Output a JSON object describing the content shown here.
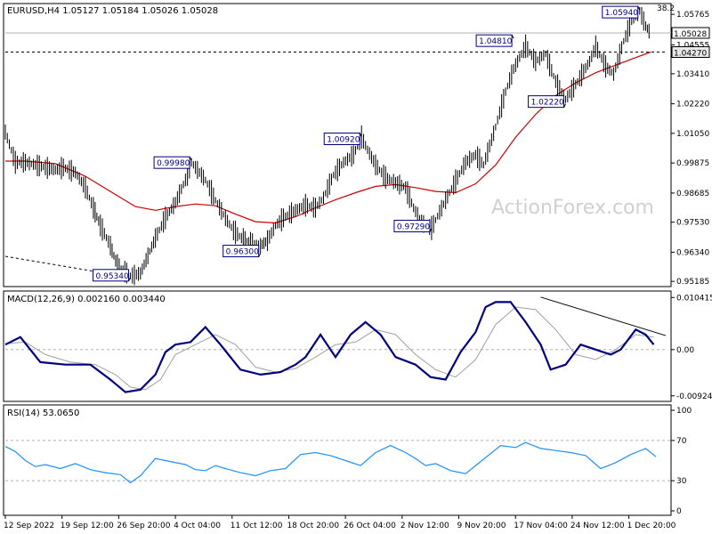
{
  "chart_data": [
    {
      "panel": "price",
      "type": "line",
      "header": "EURUSD,H4  1.05127 1.05184 1.05026 1.05028",
      "watermark": "ActionForex.com",
      "corner_value": "38.2",
      "ylim": [
        0.9505,
        1.0605
      ],
      "y_ticks": [
        "1.05765",
        "1.04555",
        "1.03410",
        "1.02220",
        "1.01050",
        "0.99875",
        "0.98685",
        "0.97530",
        "0.96340",
        "0.95185"
      ],
      "current_price": "1.05028",
      "ma_price": "1.04270",
      "price_line_level": 1.05028,
      "ma_dashed_level": 1.0427,
      "series": [
        {
          "name": "",
          "color": "#000000",
          "x_index": [
            0,
            10,
            20,
            30,
            40,
            50,
            58,
            70,
            80,
            88,
            95,
            105,
            112,
            125,
            135,
            150,
            160,
            170,
            180,
            186,
            200,
            210,
            220,
            228,
            236,
            245,
            255,
            262,
            270,
            278,
            290,
            300,
            310,
            318,
            328,
            338,
            348,
            356,
            362,
            370,
            380,
            390,
            400,
            408,
            416,
            426,
            440,
            452,
            460,
            470,
            478,
            490,
            500,
            508,
            520,
            530,
            540,
            550,
            560,
            572,
            584,
            590,
            600,
            608,
            618,
            626,
            634,
            640,
            645
          ],
          "values": [
            1.011,
            0.999,
            0.999,
            0.998,
            0.997,
            0.996,
            0.997,
            0.995,
            0.989,
            0.981,
            0.974,
            0.966,
            0.958,
            0.954,
            0.955,
            0.969,
            0.977,
            0.983,
            0.992,
            0.999,
            0.992,
            0.984,
            0.977,
            0.972,
            0.969,
            0.967,
            0.966,
            0.968,
            0.974,
            0.977,
            0.98,
            0.982,
            0.981,
            0.985,
            0.994,
            0.999,
            1.002,
            1.009,
            1.004,
            0.998,
            0.993,
            0.991,
            0.989,
            0.981,
            0.975,
            0.973,
            0.984,
            0.993,
            0.999,
            1.002,
            0.998,
            1.013,
            1.027,
            1.036,
            1.045,
            1.039,
            1.042,
            1.031,
            1.024,
            1.031,
            1.039,
            1.045,
            1.037,
            1.034,
            1.047,
            1.055,
            1.059,
            1.053,
            1.05
          ]
        },
        {
          "name": "",
          "color": "#cc0000",
          "x_index": [
            0,
            20,
            50,
            80,
            105,
            130,
            150,
            170,
            190,
            210,
            230,
            250,
            270,
            290,
            310,
            330,
            350,
            370,
            390,
            410,
            430,
            450,
            470,
            490,
            510,
            530,
            550,
            570,
            590,
            610,
            630,
            645
          ],
          "values": [
            0.9995,
            0.9995,
            0.9985,
            0.9935,
            0.9875,
            0.9815,
            0.98,
            0.9815,
            0.9825,
            0.9818,
            0.9785,
            0.9755,
            0.975,
            0.9775,
            0.981,
            0.9842,
            0.987,
            0.9895,
            0.9902,
            0.989,
            0.9875,
            0.987,
            0.9905,
            0.998,
            1.009,
            1.018,
            1.0255,
            1.0305,
            1.0345,
            1.0375,
            1.0405,
            1.0427
          ]
        }
      ],
      "labeled_points": [
        {
          "label": "0.95340",
          "x_index": 125,
          "y": 0.9534
        },
        {
          "label": "0.99980",
          "x_index": 186,
          "y": 0.9998
        },
        {
          "label": "0.96300",
          "x_index": 255,
          "y": 0.963
        },
        {
          "label": "1.00920",
          "x_index": 356,
          "y": 1.0092
        },
        {
          "label": "0.97290",
          "x_index": 426,
          "y": 0.9729
        },
        {
          "label": "1.04810",
          "x_index": 508,
          "y": 1.0481
        },
        {
          "label": "1.02220",
          "x_index": 560,
          "y": 1.0222
        },
        {
          "label": "1.05940",
          "x_index": 634,
          "y": 1.0594
        }
      ],
      "trendlines": [
        {
          "style": "dashed",
          "x_index": [
            0,
            125
          ],
          "values": [
            0.9618,
            0.9534
          ]
        },
        {
          "style": "dashed",
          "x_index": [
            0,
            660
          ],
          "values": [
            1.0427,
            1.0427
          ]
        }
      ]
    },
    {
      "panel": "macd",
      "type": "line",
      "header": "MACD(12,26,9) 0.002160 0.003440",
      "ylim": [
        -0.01,
        0.011
      ],
      "y_ticks": [
        "0.010415",
        "0.00",
        "-0.009244"
      ],
      "series": [
        {
          "name": "",
          "color": "#000080",
          "x_index": [
            0,
            15,
            35,
            60,
            85,
            105,
            120,
            135,
            150,
            160,
            170,
            185,
            200,
            215,
            235,
            255,
            275,
            290,
            300,
            315,
            330,
            345,
            360,
            375,
            390,
            410,
            425,
            440,
            455,
            470,
            480,
            490,
            505,
            520,
            535,
            545,
            560,
            575,
            590,
            605,
            615,
            630,
            640,
            648
          ],
          "values": [
            0.001,
            0.0025,
            -0.0025,
            -0.003,
            -0.003,
            -0.006,
            -0.0085,
            -0.008,
            -0.005,
            -0.0005,
            0.001,
            0.0015,
            0.0045,
            0.001,
            -0.004,
            -0.005,
            -0.0045,
            -0.003,
            -0.0015,
            0.003,
            -0.0015,
            0.003,
            0.0055,
            0.003,
            -0.0015,
            -0.003,
            -0.0055,
            -0.006,
            -0.0005,
            0.0035,
            0.0085,
            0.0095,
            0.0095,
            0.0055,
            0.001,
            -0.004,
            -0.003,
            0.001,
            0.0,
            -0.001,
            0.0,
            0.004,
            0.003,
            0.001
          ]
        },
        {
          "name": "",
          "color": "#a0a0a0",
          "x_index": [
            0,
            20,
            40,
            65,
            90,
            110,
            125,
            140,
            155,
            170,
            190,
            210,
            230,
            250,
            270,
            290,
            310,
            330,
            350,
            370,
            390,
            410,
            430,
            450,
            470,
            490,
            510,
            530,
            550,
            570,
            590,
            610,
            630,
            648
          ],
          "values": [
            0.0012,
            0.0015,
            -0.001,
            -0.0025,
            -0.003,
            -0.005,
            -0.0075,
            -0.008,
            -0.006,
            -0.001,
            0.001,
            0.003,
            0.001,
            -0.0035,
            -0.0045,
            -0.0038,
            -0.0015,
            0.001,
            0.0015,
            0.004,
            0.003,
            -0.001,
            -0.004,
            -0.0055,
            -0.002,
            0.005,
            0.0085,
            0.008,
            0.004,
            -0.001,
            -0.002,
            0.0,
            0.003,
            0.0025
          ]
        }
      ],
      "trendlines": [
        {
          "style": "solid",
          "x_index": [
            535,
            660
          ],
          "values": [
            0.0105,
            0.0028
          ]
        },
        {
          "style": "dashed",
          "x_index": [
            0,
            660
          ],
          "values": [
            0,
            0
          ]
        }
      ]
    },
    {
      "panel": "rsi",
      "type": "line",
      "header": "RSI(14) 53.0650",
      "ylim": [
        0,
        100
      ],
      "y_ticks": [
        "100",
        "70",
        "30",
        "0"
      ],
      "levels": [
        70,
        30
      ],
      "series": [
        {
          "name": "",
          "color": "#1e90ff",
          "x_index": [
            0,
            10,
            20,
            30,
            40,
            55,
            70,
            85,
            100,
            115,
            125,
            135,
            150,
            165,
            180,
            190,
            200,
            210,
            220,
            235,
            250,
            265,
            280,
            295,
            310,
            325,
            340,
            355,
            370,
            385,
            400,
            410,
            420,
            430,
            445,
            460,
            470,
            480,
            495,
            510,
            520,
            535,
            550,
            565,
            580,
            595,
            610,
            625,
            640,
            650
          ],
          "values": [
            64,
            59,
            50,
            44,
            46,
            42,
            47,
            41,
            38,
            36,
            28,
            35,
            52,
            49,
            46,
            41,
            40,
            45,
            42,
            38,
            35,
            40,
            42,
            56,
            58,
            55,
            50,
            45,
            58,
            65,
            58,
            52,
            45,
            47,
            40,
            37,
            45,
            53,
            65,
            63,
            68,
            62,
            60,
            58,
            55,
            42,
            48,
            56,
            62,
            54
          ]
        }
      ]
    }
  ],
  "x_axis": {
    "labels": [
      "12 Sep 2022",
      "19 Sep 12:00",
      "26 Sep 20:00",
      "4 Oct 04:00",
      "11 Oct 12:00",
      "18 Oct 20:00",
      "26 Oct 04:00",
      "2 Nov 12:00",
      "9 Nov 20:00",
      "17 Nov 04:00",
      "24 Nov 12:00",
      "1 Dec 20:00"
    ]
  }
}
